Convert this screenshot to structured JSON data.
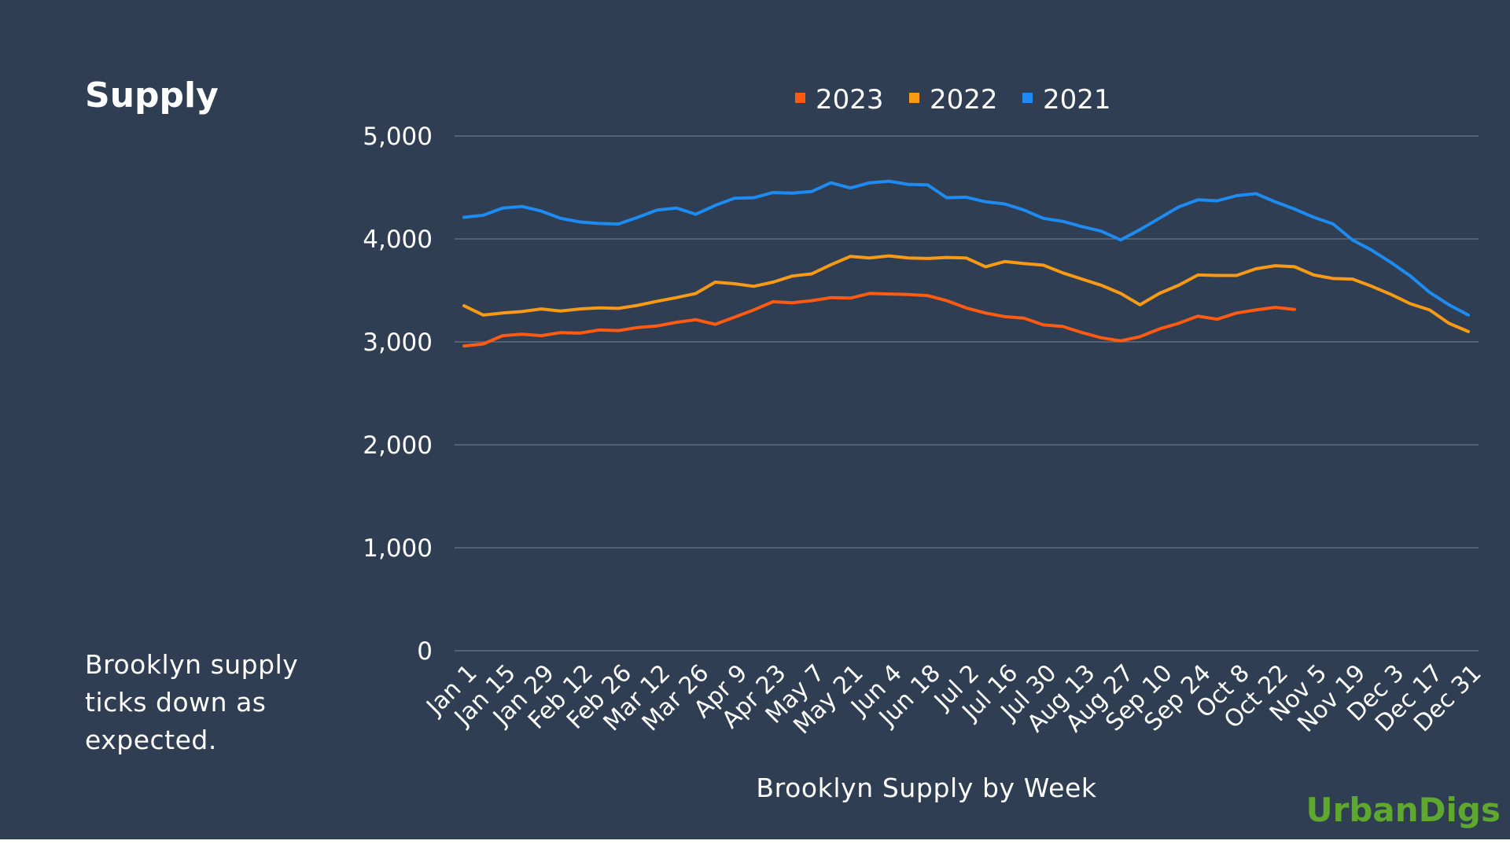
{
  "title": "Supply",
  "caption": "Brooklyn supply ticks down as expected.",
  "brand": "UrbanDigs",
  "colors": {
    "background": "#2f3e52",
    "gridline": "#6b7787",
    "text": "#ffffff",
    "brand": "#5fa82e"
  },
  "chart_data": {
    "type": "line",
    "title": "",
    "xlabel": "Brooklyn Supply by Week",
    "ylabel": "",
    "ylim": [
      0,
      5000
    ],
    "yticks": [
      0,
      1000,
      2000,
      3000,
      4000,
      5000
    ],
    "ytick_labels": [
      "0",
      "1,000",
      "2,000",
      "3,000",
      "4,000",
      "5,000"
    ],
    "xtick_labels": [
      "Jan 1",
      "Jan 15",
      "Jan 29",
      "Feb 12",
      "Feb 26",
      "Mar 12",
      "Mar 26",
      "Apr 9",
      "Apr 23",
      "May 7",
      "May 21",
      "Jun 4",
      "Jun 18",
      "Jul 2",
      "Jul 16",
      "Jul 30",
      "Aug 13",
      "Aug 27",
      "Sep 10",
      "Sep 24",
      "Oct 8",
      "Oct 22",
      "Nov 5",
      "Nov 19",
      "Dec 3",
      "Dec 17",
      "Dec 31"
    ],
    "legend_position": "top-center",
    "grid": true,
    "series": [
      {
        "name": "2023",
        "color": "#fd5a12",
        "values": [
          2960,
          2980,
          3060,
          3075,
          3060,
          3090,
          3085,
          3115,
          3110,
          3140,
          3155,
          3190,
          3215,
          3170,
          3240,
          3310,
          3390,
          3380,
          3400,
          3430,
          3425,
          3470,
          3465,
          3460,
          3450,
          3400,
          3330,
          3280,
          3245,
          3230,
          3165,
          3150,
          3090,
          3040,
          3010,
          3050,
          3125,
          3180,
          3250,
          3220,
          3280,
          3310,
          3335,
          3315
        ]
      },
      {
        "name": "2022",
        "color": "#f79a16",
        "values": [
          3350,
          3260,
          3280,
          3295,
          3320,
          3300,
          3320,
          3330,
          3325,
          3355,
          3395,
          3430,
          3470,
          3580,
          3565,
          3540,
          3580,
          3640,
          3660,
          3750,
          3830,
          3815,
          3835,
          3815,
          3810,
          3820,
          3815,
          3730,
          3780,
          3760,
          3745,
          3670,
          3610,
          3550,
          3470,
          3360,
          3470,
          3550,
          3650,
          3645,
          3645,
          3710,
          3740,
          3730,
          3650,
          3615,
          3610,
          3540,
          3460,
          3370,
          3310,
          3180,
          3100
        ]
      },
      {
        "name": "2021",
        "color": "#1d8bf1",
        "values": [
          4210,
          4230,
          4300,
          4315,
          4270,
          4200,
          4165,
          4150,
          4145,
          4210,
          4280,
          4300,
          4240,
          4325,
          4395,
          4400,
          4450,
          4445,
          4460,
          4545,
          4495,
          4545,
          4560,
          4530,
          4525,
          4400,
          4405,
          4360,
          4340,
          4280,
          4200,
          4170,
          4120,
          4075,
          3990,
          4090,
          4200,
          4310,
          4380,
          4370,
          4420,
          4440,
          4360,
          4290,
          4210,
          4145,
          3990,
          3890,
          3770,
          3640,
          3480,
          3360,
          3260
        ]
      }
    ]
  }
}
